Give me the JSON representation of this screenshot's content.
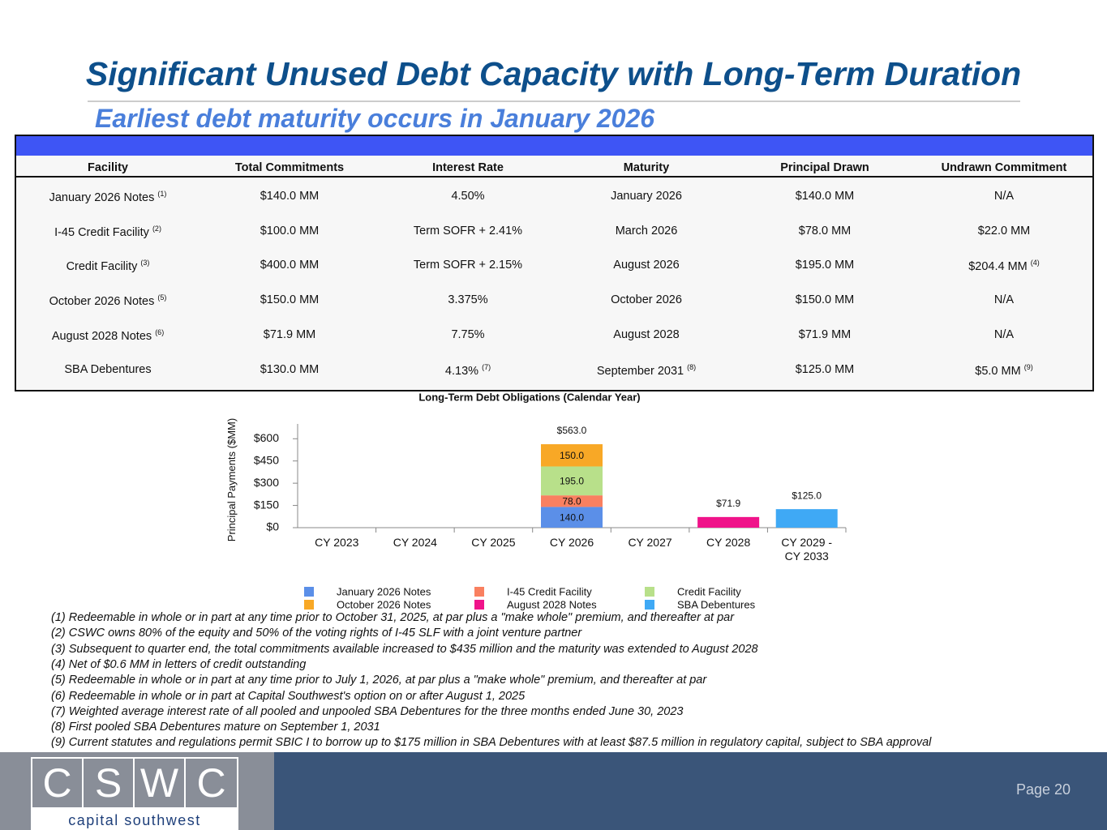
{
  "header": {
    "title": "Significant Unused Debt Capacity with Long-Term Duration",
    "subtitle": "Earliest debt maturity occurs in January 2026"
  },
  "table": {
    "columns": [
      "Facility",
      "Total Commitments",
      "Interest Rate",
      "Maturity",
      "Principal Drawn",
      "Undrawn Commitment"
    ],
    "rows": [
      [
        {
          "text": "January 2026 Notes",
          "note": "(1)"
        },
        "$140.0 MM",
        "4.50%",
        "January 2026",
        "$140.0 MM",
        "N/A"
      ],
      [
        {
          "text": "I-45 Credit Facility",
          "note": "(2)"
        },
        "$100.0 MM",
        "Term SOFR + 2.41%",
        "March 2026",
        "$78.0 MM",
        "$22.0 MM"
      ],
      [
        {
          "text": "Credit Facility",
          "note": "(3)"
        },
        "$400.0 MM",
        "Term SOFR + 2.15%",
        "August 2026",
        "$195.0 MM",
        {
          "text": "$204.4 MM",
          "note": "(4)"
        }
      ],
      [
        {
          "text": "October 2026 Notes",
          "note": "(5)"
        },
        "$150.0 MM",
        "3.375%",
        "October 2026",
        "$150.0 MM",
        "N/A"
      ],
      [
        {
          "text": "August 2028 Notes",
          "note": "(6)"
        },
        "$71.9 MM",
        "7.75%",
        "August 2028",
        "$71.9 MM",
        "N/A"
      ],
      [
        "SBA Debentures",
        "$130.0 MM",
        {
          "text": "4.13%",
          "note": "(7)"
        },
        {
          "text": "September 2031",
          "note": "(8)"
        },
        "$125.0 MM",
        {
          "text": "$5.0 MM",
          "note": "(9)"
        }
      ]
    ]
  },
  "chart_data": {
    "type": "stacked-bar",
    "title": "Long-Term Debt Obligations (Calendar Year)",
    "y_label": "Principal Payments ($MM)",
    "categories": [
      "CY 2023",
      "CY 2024",
      "CY 2025",
      "CY 2026",
      "CY 2027",
      "CY 2028",
      "CY 2029 - CY 2033"
    ],
    "series": [
      {
        "name": "January 2026 Notes",
        "color": "#5b8fe8",
        "values": [
          null,
          null,
          null,
          140,
          null,
          null,
          null
        ],
        "value_labels": [
          null,
          null,
          null,
          "140.0",
          null,
          null,
          null
        ]
      },
      {
        "name": "I-45 Credit Facility",
        "color": "#f98060",
        "values": [
          null,
          null,
          null,
          78,
          null,
          null,
          null
        ],
        "value_labels": [
          null,
          null,
          null,
          "78.0",
          null,
          null,
          null
        ]
      },
      {
        "name": "Credit Facility",
        "color": "#b8e08a",
        "values": [
          null,
          null,
          null,
          195,
          null,
          null,
          null
        ],
        "value_labels": [
          null,
          null,
          null,
          "195.0",
          null,
          null,
          null
        ]
      },
      {
        "name": "October 2026 Notes",
        "color": "#f8a826",
        "values": [
          null,
          null,
          null,
          150,
          null,
          null,
          null
        ],
        "value_labels": [
          null,
          null,
          null,
          "150.0",
          null,
          null,
          null
        ]
      },
      {
        "name": "August 2028 Notes",
        "color": "#f0138a",
        "values": [
          null,
          null,
          null,
          null,
          null,
          71.9,
          null
        ]
      },
      {
        "name": "SBA Debentures",
        "color": "#3fa9f5",
        "values": [
          null,
          null,
          null,
          null,
          null,
          null,
          125
        ]
      }
    ],
    "totals": [
      null,
      null,
      null,
      563,
      null,
      71.9,
      125
    ],
    "total_labels": [
      null,
      null,
      null,
      "$563.0",
      null,
      "$71.9",
      "$125.0"
    ],
    "ylim": [
      0,
      700
    ],
    "yticks": [
      {
        "value": 0,
        "label": "$0"
      },
      {
        "value": 150,
        "label": "$150"
      },
      {
        "value": 300,
        "label": "$300"
      },
      {
        "value": 450,
        "label": "$450"
      },
      {
        "value": 600,
        "label": "$600"
      }
    ]
  },
  "footnotes": [
    "(1) Redeemable in whole or in part at any time prior to October 31, 2025, at par plus a \"make whole\" premium, and thereafter at par",
    "(2) CSWC owns 80% of the equity and 50% of the voting rights of I-45 SLF with a joint venture partner",
    "(3) Subsequent to quarter end, the total commitments available increased to $435 million and the maturity was extended to August 2028",
    "(4) Net of $0.6 MM in letters of credit outstanding",
    "(5) Redeemable in whole or in part at any time prior to July 1, 2026, at par plus a \"make whole\" premium, and thereafter at par",
    "(6) Redeemable in whole or in part at Capital Southwest's option on or after August 1, 2025",
    "(7) Weighted average interest rate of all pooled and unpooled SBA Debentures for the three months ended June 30, 2023",
    "(8) First pooled SBA Debentures mature on September 1, 2031",
    "(9) Current statutes and regulations permit SBIC I to borrow up to $175 million in SBA Debentures with at least $87.5 million in regulatory capital, subject to SBA approval"
  ],
  "footer": {
    "logo_letters": [
      "C",
      "S",
      "W",
      "C"
    ],
    "logo_text": "capital southwest",
    "page": "Page 20"
  }
}
